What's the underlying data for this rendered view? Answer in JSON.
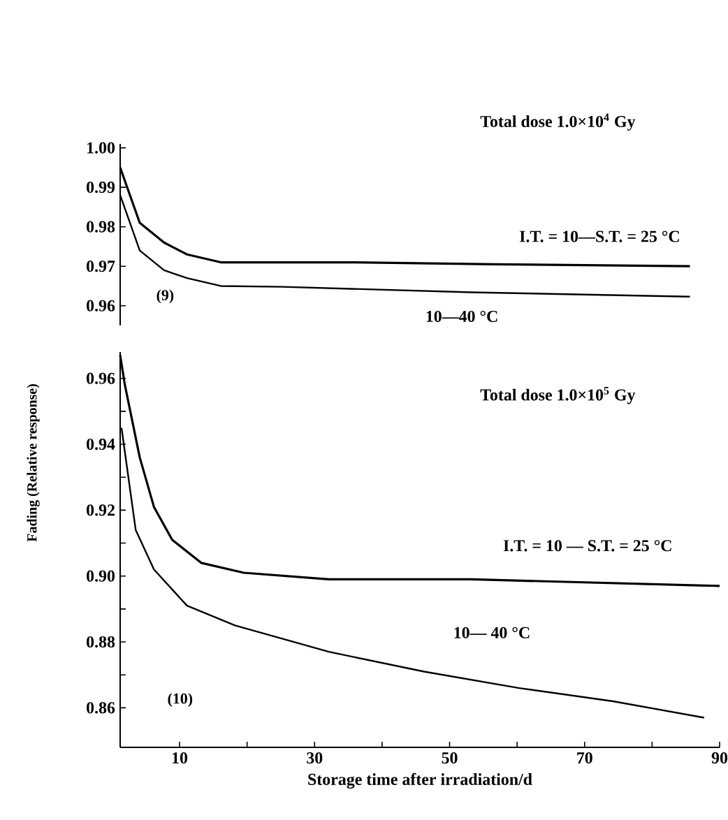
{
  "chart_data": [
    {
      "type": "line",
      "title": "Total dose  1.0×10$^{4}$ Gy",
      "annotations": [
        "(9)"
      ],
      "xlim": [
        1.2,
        90
      ],
      "ylim": [
        0.955,
        1.001
      ],
      "yticks": [
        0.96,
        0.97,
        0.98,
        0.99,
        {
          "value": 1.0,
          "label": "1.00"
        }
      ],
      "tick_labels": "y",
      "series": [
        {
          "name": "I.T. = 10—S.T. = 25 °C",
          "color": "#000000",
          "x": [
            1.2,
            4.1,
            7.7,
            11.1,
            16.1,
            35.7,
            56.7,
            85.6
          ],
          "values": [
            0.995,
            0.981,
            0.976,
            0.973,
            0.971,
            0.971,
            0.9705,
            0.97
          ]
        },
        {
          "name": "10—40 °C",
          "color": "#000000",
          "x": [
            1.2,
            4.1,
            7.7,
            11.1,
            16.1,
            25.2,
            53.2,
            85.6
          ],
          "values": [
            0.988,
            0.974,
            0.969,
            0.967,
            0.965,
            0.9648,
            0.9634,
            0.9623
          ]
        }
      ]
    },
    {
      "type": "line",
      "title": "Total dose 1.0×10$^{5}$ Gy",
      "annotations": [
        "(10)"
      ],
      "xlabel": "Storage time after irradiation/d",
      "ylabel": "Fading (Relative response)",
      "xlim": [
        1.2,
        90
      ],
      "ylim": [
        0.848,
        0.968
      ],
      "xticks": [
        10,
        {
          "value": 20,
          "label": null
        },
        30,
        {
          "value": 40,
          "label": null
        },
        50,
        {
          "value": 60,
          "label": null
        },
        70,
        {
          "value": 80,
          "label": null
        },
        90
      ],
      "yticks": [
        0.86,
        {
          "value": 0.87,
          "label": null
        },
        0.88,
        {
          "value": 0.89,
          "label": null
        },
        {
          "value": 0.9,
          "label": "0.90"
        },
        {
          "value": 0.91,
          "label": null
        },
        0.92,
        {
          "value": 0.93,
          "label": null
        },
        0.94,
        {
          "value": 0.95,
          "label": null
        },
        0.96
      ],
      "series": [
        {
          "name": "I.T. = 10 — S.T. = 25 °C",
          "color": "#000000",
          "x": [
            1.2,
            1.9,
            4.1,
            6.2,
            8.9,
            13.2,
            19.5,
            32.1,
            53.2,
            90
          ],
          "values": [
            0.967,
            0.958,
            0.936,
            0.921,
            0.911,
            0.904,
            0.901,
            0.899,
            0.899,
            0.897
          ]
        },
        {
          "name": "10— 40 °C",
          "color": "#000000",
          "x": [
            1.4,
            3.5,
            6.2,
            11.1,
            18.2,
            32.1,
            46.2,
            60.3,
            74.2,
            87.7
          ],
          "values": [
            0.945,
            0.914,
            0.902,
            0.891,
            0.885,
            0.877,
            0.871,
            0.866,
            0.862,
            0.857
          ]
        }
      ]
    }
  ]
}
